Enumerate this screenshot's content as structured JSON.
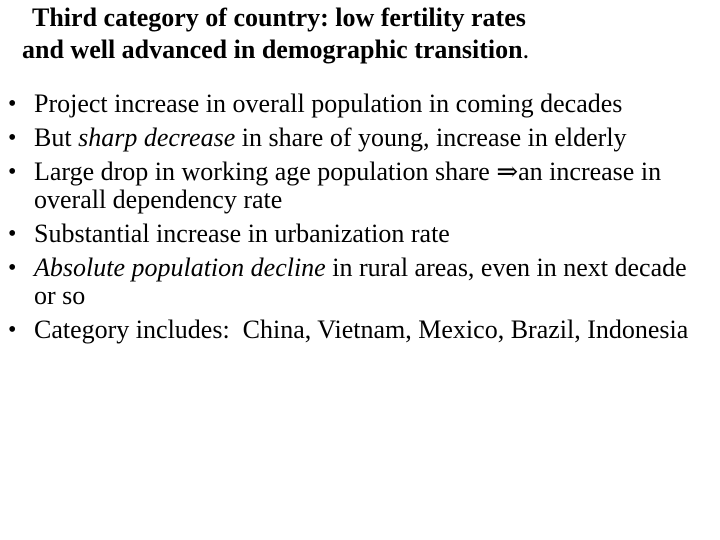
{
  "heading": {
    "line1": "Third category of country: low fertility rates",
    "line2": "and well advanced in demographic transition",
    "period": "."
  },
  "bullets": [
    {
      "text": "Project increase in overall population in coming decades"
    },
    {
      "pre": "But ",
      "ital": "sharp decrease",
      "post": " in share of young, increase in elderly"
    },
    {
      "pre": "Large drop in working age population share ",
      "arrow": "⇒",
      "post": "an increase in overall dependency rate"
    },
    {
      "text": "Substantial increase in urbanization rate"
    },
    {
      "ital": "Absolute population decline",
      "post": " in rural areas, even in next decade or so"
    },
    {
      "text": "Category includes:  China, Vietnam, Mexico, Brazil, Indonesia"
    }
  ],
  "bullet_symbol": "•"
}
